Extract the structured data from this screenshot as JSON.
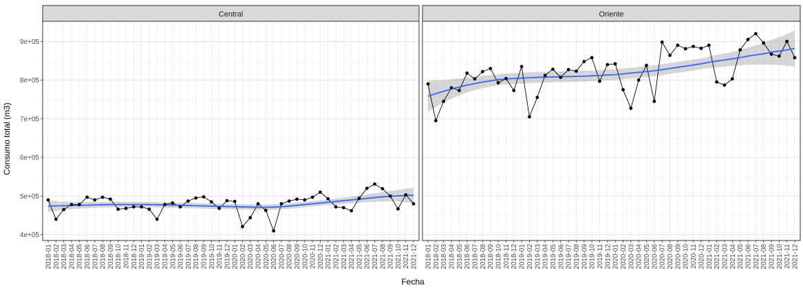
{
  "chart_data": {
    "type": "line",
    "xlabel": "Fecha",
    "ylabel": "Consumo total (m3)",
    "y_ticks": [
      "4e+05",
      "5e+05",
      "6e+05",
      "7e+05",
      "8e+05",
      "9e+05"
    ],
    "y_tick_values": [
      400000,
      500000,
      600000,
      700000,
      800000,
      900000
    ],
    "ylim": [
      385000,
      952000
    ],
    "x": [
      "2018-01",
      "2018-02",
      "2018-03",
      "2018-04",
      "2018-05",
      "2018-06",
      "2018-07",
      "2018-08",
      "2018-09",
      "2018-10",
      "2018-11",
      "2018-12",
      "2019-01",
      "2019-02",
      "2019-03",
      "2019-04",
      "2019-05",
      "2019-06",
      "2019-07",
      "2019-08",
      "2019-09",
      "2019-10",
      "2019-11",
      "2019-12",
      "2020-01",
      "2020-02",
      "2020-03",
      "2020-04",
      "2020-05",
      "2020-06",
      "2020-07",
      "2020-08",
      "2020-09",
      "2020-10",
      "2020-11",
      "2020-12",
      "2021-01",
      "2021-02",
      "2021-03",
      "2021-04",
      "2021-05",
      "2021-06",
      "2021-07",
      "2021-08",
      "2021-09",
      "2021-10",
      "2021-11",
      "2021-12"
    ],
    "grid": true,
    "smooth_color": "#3366ff",
    "band_color": "#999999",
    "point_color": "#000000",
    "panels": [
      {
        "name": "Central",
        "values": [
          490000,
          440000,
          465000,
          478000,
          478000,
          497000,
          490000,
          497000,
          492000,
          466000,
          468000,
          472000,
          472000,
          466000,
          440000,
          478000,
          482000,
          472000,
          487000,
          495000,
          498000,
          485000,
          468000,
          488000,
          486000,
          421000,
          444000,
          480000,
          463000,
          410000,
          480000,
          487000,
          492000,
          490000,
          497000,
          510000,
          493000,
          472000,
          470000,
          462000,
          494000,
          520000,
          531000,
          519000,
          500000,
          467000,
          503000,
          480000
        ],
        "trend": [
          474000,
          474500,
          475000,
          475500,
          476000,
          476500,
          477000,
          477500,
          478000,
          478000,
          478000,
          478000,
          478000,
          478000,
          477500,
          477000,
          476500,
          476000,
          475500,
          475000,
          474500,
          474000,
          473500,
          473000,
          472500,
          472000,
          471500,
          471000,
          471000,
          471500,
          472500,
          474000,
          476000,
          478000,
          480000,
          482000,
          484000,
          486000,
          488000,
          490000,
          492000,
          494000,
          496000,
          498000,
          499500,
          500500,
          501500,
          502000
        ],
        "band_half": [
          15000,
          13000,
          11000,
          9500,
          8500,
          8000,
          7500,
          7200,
          7000,
          7000,
          7000,
          7000,
          7000,
          7000,
          7000,
          7000,
          7000,
          7000,
          7000,
          7000,
          7000,
          7000,
          7000,
          7000,
          7000,
          7000,
          7000,
          7000,
          7000,
          7000,
          7000,
          7000,
          7000,
          7000,
          7000,
          7000,
          7200,
          7500,
          8000,
          8500,
          9000,
          10000,
          11000,
          12000,
          13500,
          15000,
          17000,
          20000
        ]
      },
      {
        "name": "Oriente",
        "values": [
          790000,
          695000,
          745000,
          780000,
          773000,
          818000,
          803000,
          822000,
          830000,
          793000,
          804000,
          773000,
          835000,
          705000,
          755000,
          812000,
          828000,
          807000,
          827000,
          823000,
          848000,
          858000,
          797000,
          840000,
          842000,
          775000,
          727000,
          800000,
          838000,
          745000,
          898000,
          864000,
          890000,
          881000,
          887000,
          882000,
          890000,
          795000,
          787000,
          803000,
          878000,
          905000,
          920000,
          896000,
          867000,
          862000,
          900000,
          858000
        ],
        "trend": [
          758000,
          765000,
          771000,
          777000,
          782000,
          787000,
          791000,
          795000,
          798000,
          801000,
          803000,
          804000,
          805000,
          806000,
          807000,
          807500,
          808000,
          808500,
          809000,
          809500,
          810000,
          811000,
          812000,
          813000,
          814000,
          816000,
          818000,
          820000,
          822000,
          824000,
          827000,
          830000,
          833000,
          836000,
          839000,
          842000,
          846000,
          849000,
          852000,
          855000,
          858000,
          862000,
          865000,
          868000,
          872000,
          875000,
          878000,
          882000
        ],
        "band_half": [
          40000,
          34000,
          29000,
          25000,
          22000,
          19000,
          17000,
          16000,
          15000,
          14000,
          14000,
          14000,
          14000,
          14000,
          14000,
          14000,
          14000,
          14000,
          14000,
          14000,
          14000,
          14000,
          14000,
          14000,
          14000,
          14000,
          14000,
          14000,
          14000,
          14000,
          14000,
          14000,
          14000,
          14000,
          14000,
          14000,
          15000,
          16000,
          17000,
          18000,
          20000,
          22000,
          25000,
          28000,
          32000,
          36000,
          41000,
          47000
        ]
      }
    ]
  }
}
